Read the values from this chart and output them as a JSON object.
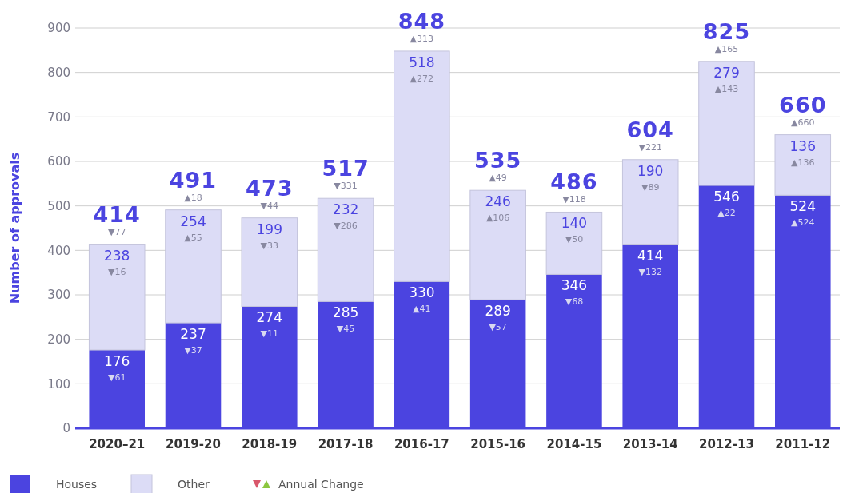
{
  "chart_data": {
    "type": "bar",
    "stacked": true,
    "ylabel": "Number of approvals",
    "categories": [
      "2020–21",
      "2019-20",
      "2018-19",
      "2017-18",
      "2016-17",
      "2015-16",
      "2014-15",
      "2013-14",
      "2012-13",
      "2011-12"
    ],
    "series": [
      {
        "name": "Houses",
        "color": "#4b44e0",
        "values": [
          176,
          237,
          274,
          285,
          330,
          289,
          346,
          414,
          546,
          524
        ]
      },
      {
        "name": "Other",
        "color": "#dcdcf6",
        "values": [
          238,
          254,
          199,
          232,
          518,
          246,
          140,
          190,
          279,
          136
        ]
      }
    ],
    "totals": [
      "414",
      "491",
      "473",
      "517",
      "848",
      "535",
      "486",
      "604",
      "825",
      "660"
    ],
    "data_labels": true,
    "ylim": [
      0,
      900
    ],
    "yticks": [
      0,
      100,
      200,
      300,
      400,
      500,
      600,
      700,
      800,
      900
    ],
    "grid": "y",
    "legend": "bottom left",
    "annotations": [
      {
        "text": "▼77",
        "x": "2020–21",
        "y": 414
      },
      {
        "text": "▼61",
        "x": "2020–21",
        "y": 176
      },
      {
        "text": "▼16",
        "x": "2020–21",
        "y": 414
      },
      {
        "text": "▲18",
        "x": "2019-20",
        "y": 491
      },
      {
        "text": "▼37",
        "x": "2019-20",
        "y": 237
      },
      {
        "text": "▲55",
        "x": "2019-20",
        "y": 491
      },
      {
        "text": "▼44",
        "x": "2018-19",
        "y": 473
      },
      {
        "text": "▼11",
        "x": "2018-19",
        "y": 274
      },
      {
        "text": "▼33",
        "x": "2018-19",
        "y": 473
      },
      {
        "text": "▼331",
        "x": "2017-18",
        "y": 517
      },
      {
        "text": "▼45",
        "x": "2017-18",
        "y": 285
      },
      {
        "text": "▼286",
        "x": "2017-18",
        "y": 517
      },
      {
        "text": "▲313",
        "x": "2016-17",
        "y": 848
      },
      {
        "text": "▲41",
        "x": "2016-17",
        "y": 330
      },
      {
        "text": "▲272",
        "x": "2016-17",
        "y": 848
      },
      {
        "text": "▲49",
        "x": "2015-16",
        "y": 535
      },
      {
        "text": "▼57",
        "x": "2015-16",
        "y": 289
      },
      {
        "text": "▲106",
        "x": "2015-16",
        "y": 535
      },
      {
        "text": "▼118",
        "x": "2014-15",
        "y": 486
      },
      {
        "text": "▼68",
        "x": "2014-15",
        "y": 346
      },
      {
        "text": "▼50",
        "x": "2014-15",
        "y": 486
      },
      {
        "text": "▼221",
        "x": "2013-14",
        "y": 604
      },
      {
        "text": "▼132",
        "x": "2013-14",
        "y": 414
      },
      {
        "text": "▼89",
        "x": "2013-14",
        "y": 604
      },
      {
        "text": "▲165",
        "x": "2012-13",
        "y": 825
      },
      {
        "text": "▲22",
        "x": "2012-13",
        "y": 546
      },
      {
        "text": "▲143",
        "x": "2012-13",
        "y": 825
      },
      {
        "text": "▲660",
        "x": "2011-12",
        "y": 660
      },
      {
        "text": "▲524",
        "x": "2011-12",
        "y": 524
      },
      {
        "text": "▲136",
        "x": "2011-12",
        "y": 660
      },
      "Annual Change"
    ]
  }
}
